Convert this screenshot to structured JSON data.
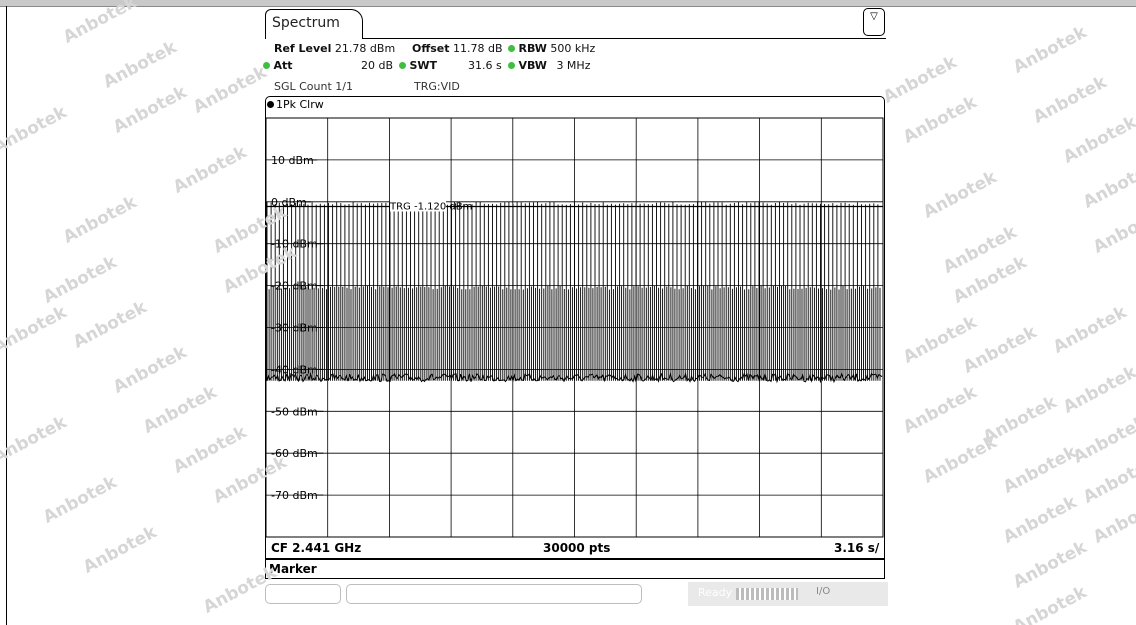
{
  "window": {
    "tab_label": "Spectrum",
    "menu_icon": "trace-menu-icon",
    "menu_glyph": "▽"
  },
  "settings": {
    "ref_level_label": "Ref Level",
    "ref_level_value": "21.78 dBm",
    "offset_label": "Offset",
    "offset_value": "11.78 dB",
    "rbw_label": "RBW",
    "rbw_value": "500 kHz",
    "att_label": "Att",
    "att_value": "20 dB",
    "swt_label": "SWT",
    "swt_value": "31.6 s",
    "vbw_label": "VBW",
    "vbw_value": "3 MHz",
    "sgl_count": "SGL Count 1/1",
    "trigger": "TRG:VID",
    "indicator_color": "#3fbf3f"
  },
  "trace": {
    "label": "1Pk Clrw"
  },
  "chart_data": {
    "type": "line",
    "title": "",
    "xlabel": "",
    "ylabel": "",
    "ylim": [
      -80,
      20
    ],
    "y_ticks": [
      {
        "value": 10,
        "label": "10 dBm"
      },
      {
        "value": 0,
        "label": "0 dBm"
      },
      {
        "value": -10,
        "label": "-10 dBm"
      },
      {
        "value": -20,
        "label": "-20 dBm"
      },
      {
        "value": -30,
        "label": "-30 dBm"
      },
      {
        "value": -40,
        "label": "-40 dBm"
      },
      {
        "value": -50,
        "label": "-50 dBm"
      },
      {
        "value": -60,
        "label": "-60 dBm"
      },
      {
        "value": -70,
        "label": "-70 dBm"
      }
    ],
    "grid": true,
    "x_divisions": 10,
    "trigger_level": {
      "value": -1.12,
      "label": "TRG  -1.120 dBm"
    },
    "series": [
      {
        "name": "1Pk Clrw",
        "color": "#000000",
        "noise_floor_dbm": -42,
        "burst_peak_dbm": 0,
        "burst_mid_dbm": -20,
        "burst_count": 300
      }
    ],
    "center_frequency": "CF 2.441 GHz",
    "points": "30000 pts",
    "time_per_div": "3.16 s/"
  },
  "marker_label": "Marker",
  "status": {
    "ready_text": "Ready",
    "io_text": "I/O"
  },
  "watermark": "Anbotek"
}
